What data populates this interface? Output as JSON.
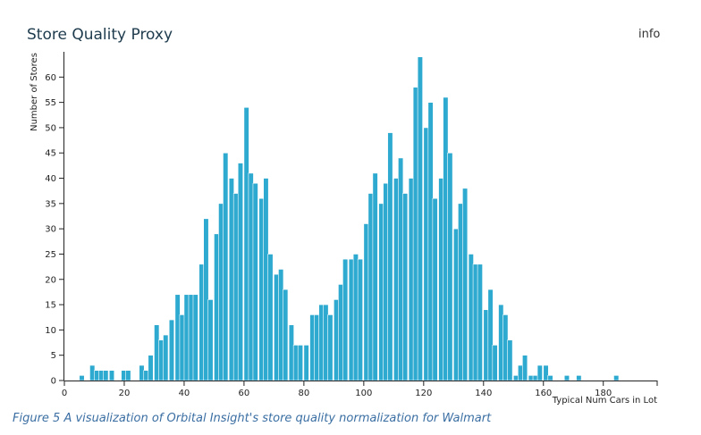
{
  "header": {
    "title": "Store Quality Proxy",
    "info_label": "info"
  },
  "caption": "Figure 5 A visualization of Orbital Insight's store quality normalization for Walmart",
  "colors": {
    "bar": "#2ea9cf",
    "bar_edge": "#ffffff",
    "axis": "#222222",
    "title": "#1e3b4d",
    "caption": "#3b6fa3"
  },
  "chart_data": {
    "type": "bar",
    "title": "Store Quality Proxy",
    "xlabel": "Typical Num Cars in Lot",
    "ylabel": "Number of Stores",
    "xlim": [
      0,
      198
    ],
    "ylim": [
      0,
      65
    ],
    "grid": false,
    "xticks": [
      0,
      20,
      40,
      60,
      80,
      100,
      120,
      140,
      160,
      180
    ],
    "yticks": [
      0,
      5,
      10,
      15,
      20,
      25,
      30,
      35,
      40,
      45,
      50,
      55,
      60
    ],
    "bin_width": 1.65,
    "bins": [
      {
        "x": 5,
        "count": 1
      },
      {
        "x": 8.5,
        "count": 3
      },
      {
        "x": 10,
        "count": 2
      },
      {
        "x": 11.5,
        "count": 2
      },
      {
        "x": 13,
        "count": 2
      },
      {
        "x": 15,
        "count": 2
      },
      {
        "x": 19,
        "count": 2
      },
      {
        "x": 20.5,
        "count": 2
      },
      {
        "x": 25,
        "count": 3
      },
      {
        "x": 26.5,
        "count": 2
      },
      {
        "x": 28,
        "count": 5
      },
      {
        "x": 30,
        "count": 11
      },
      {
        "x": 31.5,
        "count": 8
      },
      {
        "x": 33,
        "count": 9
      },
      {
        "x": 35,
        "count": 12
      },
      {
        "x": 37,
        "count": 17
      },
      {
        "x": 38.5,
        "count": 13
      },
      {
        "x": 40,
        "count": 17
      },
      {
        "x": 41.5,
        "count": 17
      },
      {
        "x": 43,
        "count": 17
      },
      {
        "x": 45,
        "count": 23
      },
      {
        "x": 46.5,
        "count": 32
      },
      {
        "x": 48,
        "count": 16
      },
      {
        "x": 50,
        "count": 29
      },
      {
        "x": 51.5,
        "count": 35
      },
      {
        "x": 53,
        "count": 45
      },
      {
        "x": 55,
        "count": 40
      },
      {
        "x": 56.5,
        "count": 37
      },
      {
        "x": 58,
        "count": 43
      },
      {
        "x": 60,
        "count": 54
      },
      {
        "x": 61.5,
        "count": 41
      },
      {
        "x": 63,
        "count": 39
      },
      {
        "x": 65,
        "count": 36
      },
      {
        "x": 66.5,
        "count": 40
      },
      {
        "x": 68,
        "count": 25
      },
      {
        "x": 70,
        "count": 21
      },
      {
        "x": 71.5,
        "count": 22
      },
      {
        "x": 73,
        "count": 18
      },
      {
        "x": 75,
        "count": 11
      },
      {
        "x": 76.5,
        "count": 7
      },
      {
        "x": 78,
        "count": 7
      },
      {
        "x": 80,
        "count": 7
      },
      {
        "x": 82,
        "count": 13
      },
      {
        "x": 83.5,
        "count": 13
      },
      {
        "x": 85,
        "count": 15
      },
      {
        "x": 86.5,
        "count": 15
      },
      {
        "x": 88,
        "count": 13
      },
      {
        "x": 90,
        "count": 16
      },
      {
        "x": 91.5,
        "count": 19
      },
      {
        "x": 93,
        "count": 24
      },
      {
        "x": 95,
        "count": 24
      },
      {
        "x": 96.5,
        "count": 25
      },
      {
        "x": 98,
        "count": 24
      },
      {
        "x": 100,
        "count": 31
      },
      {
        "x": 101.5,
        "count": 37
      },
      {
        "x": 103,
        "count": 41
      },
      {
        "x": 105,
        "count": 35
      },
      {
        "x": 106.5,
        "count": 39
      },
      {
        "x": 108,
        "count": 49
      },
      {
        "x": 110,
        "count": 40
      },
      {
        "x": 111.5,
        "count": 44
      },
      {
        "x": 113,
        "count": 37
      },
      {
        "x": 115,
        "count": 40
      },
      {
        "x": 116.5,
        "count": 58
      },
      {
        "x": 118,
        "count": 64
      },
      {
        "x": 120,
        "count": 50
      },
      {
        "x": 121.5,
        "count": 55
      },
      {
        "x": 123,
        "count": 36
      },
      {
        "x": 125,
        "count": 40
      },
      {
        "x": 126.5,
        "count": 56
      },
      {
        "x": 128,
        "count": 45
      },
      {
        "x": 130,
        "count": 30
      },
      {
        "x": 131.5,
        "count": 35
      },
      {
        "x": 133,
        "count": 38
      },
      {
        "x": 135,
        "count": 25
      },
      {
        "x": 136.5,
        "count": 23
      },
      {
        "x": 138,
        "count": 23
      },
      {
        "x": 140,
        "count": 14
      },
      {
        "x": 141.5,
        "count": 18
      },
      {
        "x": 143,
        "count": 7
      },
      {
        "x": 145,
        "count": 15
      },
      {
        "x": 146.5,
        "count": 13
      },
      {
        "x": 148,
        "count": 8
      },
      {
        "x": 150,
        "count": 1
      },
      {
        "x": 151.5,
        "count": 3
      },
      {
        "x": 153,
        "count": 5
      },
      {
        "x": 155,
        "count": 1
      },
      {
        "x": 156.5,
        "count": 1
      },
      {
        "x": 158,
        "count": 3
      },
      {
        "x": 160,
        "count": 3
      },
      {
        "x": 161.5,
        "count": 1
      },
      {
        "x": 167,
        "count": 1
      },
      {
        "x": 171,
        "count": 1
      },
      {
        "x": 183.5,
        "count": 1
      }
    ]
  }
}
